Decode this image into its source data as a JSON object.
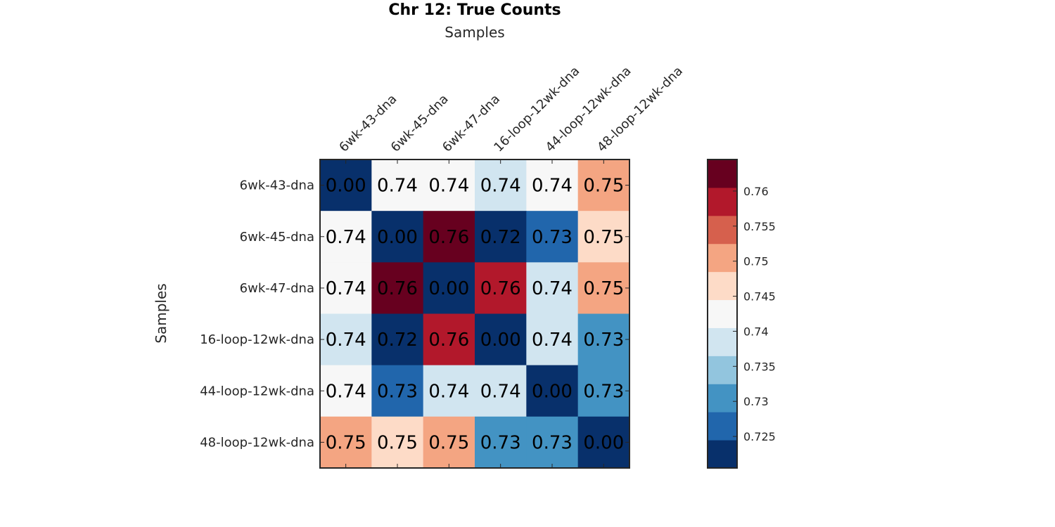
{
  "chart_data": {
    "type": "heatmap",
    "title": "Chr 12: True Counts",
    "xlabel": "Samples",
    "ylabel": "Samples",
    "x_categories": [
      "6wk-43-dna",
      "6wk-45-dna",
      "6wk-47-dna",
      "16-loop-12wk-dna",
      "44-loop-12wk-dna",
      "48-loop-12wk-dna"
    ],
    "y_categories": [
      "6wk-43-dna",
      "6wk-45-dna",
      "6wk-47-dna",
      "16-loop-12wk-dna",
      "44-loop-12wk-dna",
      "48-loop-12wk-dna"
    ],
    "values": [
      [
        0.0,
        0.7405,
        0.742,
        0.7365,
        0.741,
        0.7505
      ],
      [
        0.7405,
        0.0,
        0.7645,
        0.7218,
        0.728,
        0.747
      ],
      [
        0.742,
        0.7645,
        0.0,
        0.7595,
        0.737,
        0.7505
      ],
      [
        0.7365,
        0.7218,
        0.7595,
        0.0,
        0.7365,
        0.732
      ],
      [
        0.741,
        0.728,
        0.737,
        0.7365,
        0.0,
        0.7285
      ],
      [
        0.7505,
        0.747,
        0.7505,
        0.732,
        0.7285,
        0.0
      ]
    ],
    "cell_labels": [
      [
        "0.00",
        "0.74",
        "0.74",
        "0.74",
        "0.74",
        "0.75"
      ],
      [
        "0.74",
        "0.00",
        "0.76",
        "0.72",
        "0.73",
        "0.75"
      ],
      [
        "0.74",
        "0.76",
        "0.00",
        "0.76",
        "0.74",
        "0.75"
      ],
      [
        "0.74",
        "0.72",
        "0.76",
        "0.00",
        "0.74",
        "0.73"
      ],
      [
        "0.74",
        "0.73",
        "0.74",
        "0.74",
        "0.00",
        "0.73"
      ],
      [
        "0.75",
        "0.75",
        "0.75",
        "0.73",
        "0.73",
        "0.00"
      ]
    ],
    "x_axis_position": "top",
    "colorbar": {
      "clim": [
        0.7205,
        0.7645
      ],
      "ticks": [
        0.725,
        0.73,
        0.735,
        0.74,
        0.745,
        0.75,
        0.755,
        0.76
      ],
      "tick_labels": [
        "0.725",
        "0.73",
        "0.735",
        "0.74",
        "0.745",
        "0.75",
        "0.755",
        "0.76"
      ],
      "colors": [
        "#08306b",
        "#2166ac",
        "#4393c3",
        "#92c5de",
        "#d1e5f0",
        "#f7f7f7",
        "#fddbc7",
        "#f4a582",
        "#d6604d",
        "#b2182b",
        "#67001f"
      ]
    }
  }
}
